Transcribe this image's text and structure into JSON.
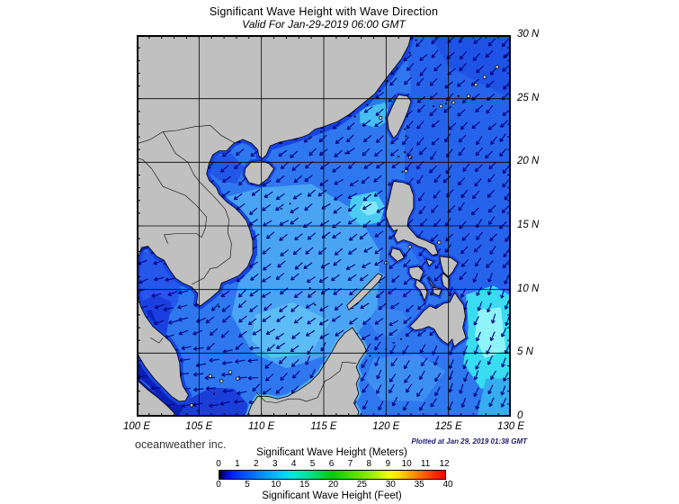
{
  "title": "Significant Wave Height with Wave Direction",
  "subtitle": "Valid For Jan-29-2019 06:00 GMT",
  "credit": "oceanweather inc.",
  "plotted": "Plotted at Jan 29, 2019 01:38 GMT",
  "map": {
    "lat_labels": [
      "30 N",
      "25 N",
      "20 N",
      "15 N",
      "10 N",
      "5 N",
      "0"
    ],
    "lat_values": [
      30,
      25,
      20,
      15,
      10,
      5,
      0
    ],
    "lon_labels": [
      "100 E",
      "105 E",
      "110 E",
      "115 E",
      "120 E",
      "125 E",
      "130 E"
    ],
    "lon_values": [
      100,
      105,
      110,
      115,
      120,
      125,
      130
    ],
    "grid_step_degrees": 5
  },
  "legend": {
    "meters_label": "Significant Wave Height (Meters)",
    "feet_label": "Significant Wave Height (Feet)",
    "meters_ticks": [
      0,
      1,
      2,
      3,
      4,
      5,
      6,
      7,
      8,
      9,
      10,
      11,
      12
    ],
    "feet_ticks": [
      0,
      5,
      10,
      15,
      20,
      25,
      30,
      35,
      40
    ]
  },
  "colors": {
    "land": "#c0c0c0",
    "coastline": "#000000",
    "sea_base": "#2e77ef",
    "pacific": "#2663eb",
    "coast_band": "#1744e4",
    "arrow": "#000080",
    "grid": "#000000"
  }
}
